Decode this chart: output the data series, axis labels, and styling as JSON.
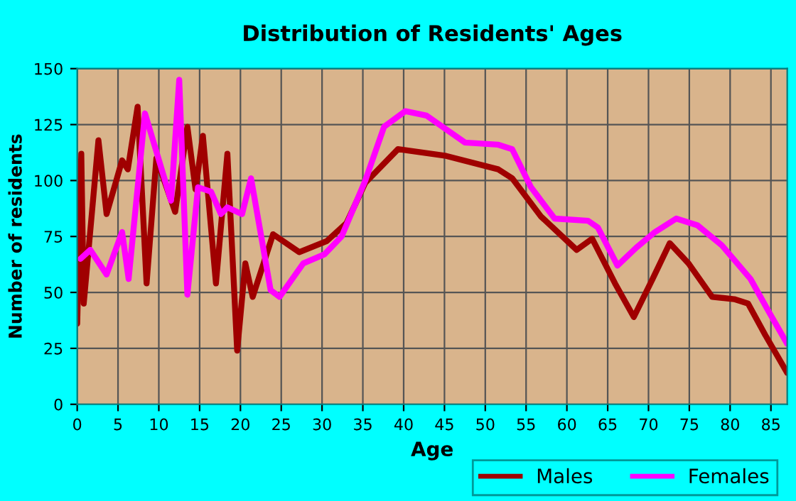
{
  "chart_data": {
    "type": "line",
    "title": "Distribution of Residents' Ages",
    "xlabel": "Age",
    "ylabel": "Number of residents",
    "xlim": [
      0,
      87
    ],
    "xticks": [
      0,
      5,
      10,
      15,
      20,
      25,
      30,
      35,
      40,
      45,
      50,
      55,
      60,
      65,
      70,
      75,
      80,
      85
    ],
    "ylim": [
      0,
      150
    ],
    "yticks": [
      0,
      25,
      50,
      75,
      100,
      125,
      150
    ],
    "grid": true,
    "legend": "bottom right",
    "line_style": "solid",
    "marker": "none",
    "series": [
      {
        "name": "Males",
        "color": "#a00000",
        "x": [
          0,
          0.5,
          0.8,
          2.6,
          3.6,
          5.5,
          6.2,
          7.4,
          8.5,
          9.7,
          12,
          13.5,
          14.5,
          15.4,
          17,
          18.4,
          19.6,
          20.6,
          21.5,
          24,
          27.2,
          30.6,
          33,
          35.3,
          39.3,
          45.2,
          51.6,
          53.3,
          56.8,
          61.2,
          63.1,
          65.9,
          68.2,
          70.5,
          72.6,
          74.9,
          77.8,
          80.5,
          82.2,
          84.3,
          87
        ],
        "values": [
          36,
          112,
          45,
          118,
          85,
          109,
          105,
          133,
          54,
          110,
          86,
          124,
          96,
          120,
          54,
          112,
          24,
          63,
          48,
          76,
          68,
          73,
          81,
          99,
          114,
          111,
          105,
          101,
          84,
          69,
          74,
          54,
          39,
          56,
          72,
          63,
          48,
          47,
          45,
          31,
          14
        ]
      },
      {
        "name": "Females",
        "color": "#ff00ff",
        "x": [
          0.4,
          1.6,
          3.6,
          5.5,
          6.3,
          8.3,
          11.5,
          12.5,
          13.5,
          14.8,
          16.4,
          17.6,
          18.4,
          20.2,
          21.3,
          23.7,
          24.8,
          27.7,
          30.3,
          32.4,
          35.3,
          37.6,
          40.2,
          42.8,
          47.5,
          51.6,
          53.3,
          55.6,
          58.5,
          62.6,
          63.8,
          66.2,
          68.5,
          70.8,
          73.4,
          76,
          79,
          82.5,
          84.8,
          87
        ],
        "values": [
          65,
          69,
          58,
          77,
          56,
          130,
          91,
          145,
          49,
          97,
          95,
          85,
          88,
          85,
          101,
          51,
          48,
          63,
          67,
          75,
          100,
          124,
          131,
          129,
          117,
          116,
          114,
          97,
          83,
          82,
          79,
          62,
          70,
          77,
          83,
          80,
          71,
          56,
          41,
          27
        ]
      }
    ]
  }
}
